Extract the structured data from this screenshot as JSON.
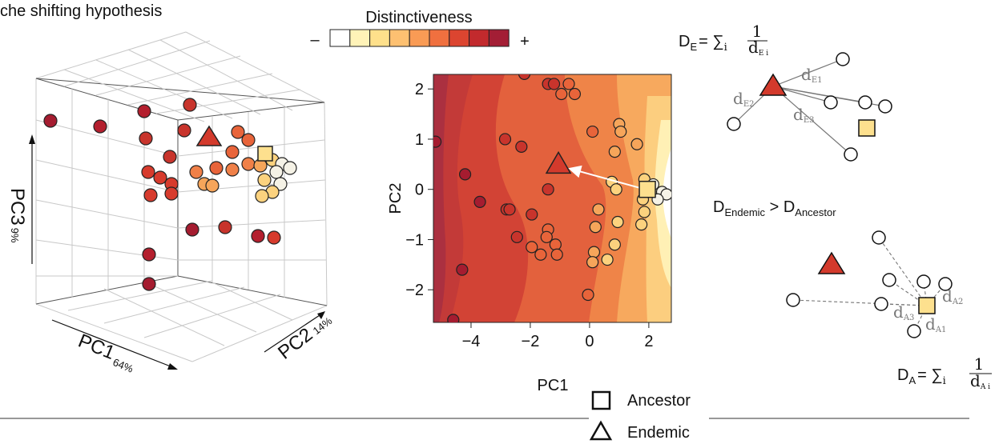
{
  "title": "che shifting hypothesis",
  "panel_3d": {
    "pc3": "PC3",
    "pc3_pct": "9%",
    "pc1": "PC1",
    "pc1_pct": "64%",
    "pc2": "PC2",
    "pc2_pct": "14%"
  },
  "legend": {
    "title": "Distinctiveness",
    "minus": "–",
    "plus": "+",
    "palette": [
      "#ffffff",
      "#fff3b8",
      "#fee08b",
      "#fdc071",
      "#f99b55",
      "#f0703f",
      "#dc4530",
      "#c22a2d",
      "#a31e35"
    ],
    "ancestor": "Ancestor",
    "endemic": "Endemic"
  },
  "chart_data": {
    "type": "scatter",
    "x_label": "PC1",
    "y_label": "PC2",
    "xlim": [
      -5.27,
      2.76
    ],
    "ylim": [
      -2.65,
      2.29
    ],
    "xticks": [
      {
        "value": -4,
        "label": "−4"
      },
      {
        "value": -2,
        "label": "−2"
      },
      0,
      2
    ],
    "yticks": [
      2,
      1,
      0,
      {
        "value": -1,
        "label": "−1"
      },
      {
        "value": -2,
        "label": "−2"
      }
    ],
    "x": [
      -2.2,
      -1.4,
      -1.2,
      -0.7,
      -0.5,
      -0.95,
      -5.2,
      -2.85,
      -2.3,
      0.1,
      1.0,
      1.05,
      1.6,
      0.85,
      -4.2,
      -3.7,
      -1.4,
      -2.8,
      -2.7,
      -1.95,
      -1.4,
      -1.45,
      -2.45,
      -1.95,
      -1.65,
      -1.15,
      -1.1,
      -4.3,
      -4.6,
      0.75,
      0.9,
      0.3,
      0.2,
      0.95,
      1.8,
      1.85,
      1.75,
      0.85,
      0.15,
      0.6,
      0.1,
      -0.05,
      1.85,
      2.15,
      2.45,
      2.6,
      2.3
    ],
    "values": [
      2.3,
      2.1,
      2.1,
      2.1,
      1.9,
      1.9,
      0.95,
      1.0,
      0.85,
      1.15,
      1.3,
      1.15,
      0.9,
      0.75,
      0.3,
      -0.25,
      0,
      -0.4,
      -0.4,
      -0.5,
      -0.8,
      -0.95,
      -0.95,
      -1.15,
      -1.3,
      -1.1,
      -1.3,
      -1.6,
      -2.6,
      0.15,
      0,
      -0.4,
      -0.75,
      -0.65,
      -0.2,
      -0.45,
      -0.7,
      -1.1,
      -1.25,
      -1.4,
      -1.45,
      -2.1,
      0.2,
      0.1,
      -0.05,
      -0.1,
      -0.2
    ],
    "colors": [
      "#c8342c",
      "#c8342c",
      "#c8342c",
      "#e8643a",
      "#e8643a",
      "#e8643a",
      "#a51c30",
      "#c8342c",
      "#c8342c",
      "#e8643a",
      "#f6a55a",
      "#f6a55a",
      "#f6a55a",
      "#f6a55a",
      "#a51c30",
      "#a51c30",
      "#c8342c",
      "#c8342c",
      "#c8342c",
      "#c8342c",
      "#e8643a",
      "#e8643a",
      "#c8342c",
      "#e8643a",
      "#e8643a",
      "#e8643a",
      "#e8643a",
      "#a51c30",
      "#a51c30",
      "#fcd27e",
      "#fcd27e",
      "#f6a55a",
      "#f6a55a",
      "#fcd27e",
      "#fcd27e",
      "#fcd27e",
      "#fcd27e",
      "#fcd27e",
      "#f6a55a",
      "#fcd27e",
      "#f6a55a",
      "#e8643a",
      "#fcd27e",
      "#f5f2e6",
      "#f5f2e6",
      "#f5f2e6",
      "#f5f2e6"
    ],
    "endemic": {
      "x": -1.05,
      "y": 0.5,
      "color": "#d33a2c"
    },
    "ancestor": {
      "x": 1.95,
      "y": 0,
      "color": "#fde08e"
    }
  },
  "formula_e": {
    "d": "D",
    "sub": "E",
    "eq": "= ∑",
    "i": "i",
    "num": "1",
    "den": "d",
    "den_sub": "E i"
  },
  "formula_a": {
    "d": "D",
    "sub": "A",
    "eq": "= ∑",
    "i": "i",
    "num": "1",
    "den": "d",
    "den_sub": "A i"
  },
  "comparison": {
    "lhs": "D",
    "lhs_sub": "Endemic",
    "op": " > ",
    "rhs": "D",
    "rhs_sub": "Ancestor"
  },
  "distances_e": [
    {
      "d": "d",
      "sub": "E1"
    },
    {
      "d": "d",
      "sub": "E2"
    },
    {
      "d": "d",
      "sub": "E3"
    }
  ],
  "distances_a": [
    {
      "d": "d",
      "sub": "A1"
    },
    {
      "d": "d",
      "sub": "A2"
    },
    {
      "d": "d",
      "sub": "A3"
    }
  ]
}
